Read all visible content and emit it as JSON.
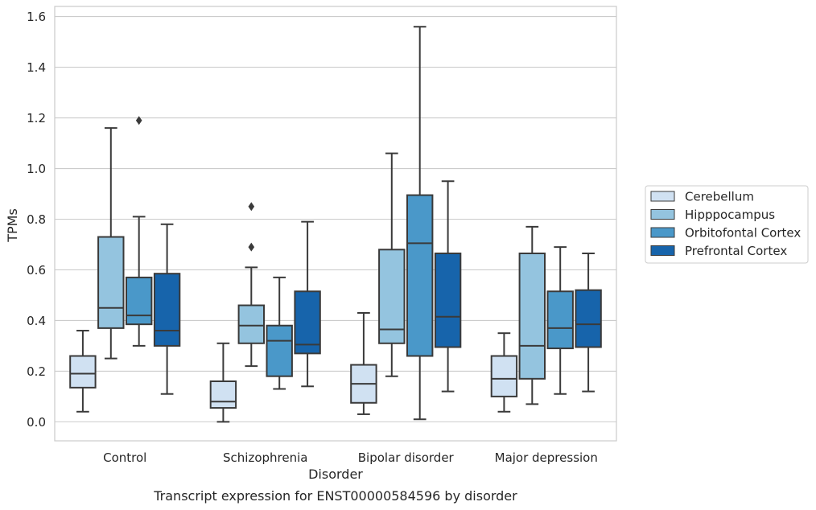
{
  "chart_data": {
    "type": "box",
    "caption": "Transcript expression for ENST00000584596 by disorder",
    "xlabel": "Disorder",
    "ylabel": "TPMs",
    "ylim": [
      -0.075,
      1.64
    ],
    "yticks": [
      0.0,
      0.2,
      0.4,
      0.6,
      0.8,
      1.0,
      1.2,
      1.4,
      1.6
    ],
    "ytick_labels": [
      "0.0",
      "0.2",
      "0.4",
      "0.6",
      "0.8",
      "1.0",
      "1.2",
      "1.4",
      "1.6"
    ],
    "grid": "horizontal",
    "legend_position": "right",
    "categories": [
      "Control",
      "Schizophrenia",
      "Bipolar disorder",
      "Major depression"
    ],
    "series": [
      {
        "name": "Cerebellum",
        "color": "#d0e1f2",
        "boxes": [
          {
            "whislo": 0.04,
            "q1": 0.135,
            "med": 0.19,
            "q3": 0.26,
            "whishi": 0.36,
            "fliers": []
          },
          {
            "whislo": 0.0,
            "q1": 0.055,
            "med": 0.08,
            "q3": 0.16,
            "whishi": 0.31,
            "fliers": []
          },
          {
            "whislo": 0.03,
            "q1": 0.075,
            "med": 0.15,
            "q3": 0.225,
            "whishi": 0.43,
            "fliers": []
          },
          {
            "whislo": 0.04,
            "q1": 0.1,
            "med": 0.17,
            "q3": 0.26,
            "whishi": 0.35,
            "fliers": []
          }
        ]
      },
      {
        "name": "Hipppocampus",
        "color": "#94c4df",
        "boxes": [
          {
            "whislo": 0.25,
            "q1": 0.37,
            "med": 0.45,
            "q3": 0.73,
            "whishi": 1.16,
            "fliers": []
          },
          {
            "whislo": 0.22,
            "q1": 0.31,
            "med": 0.38,
            "q3": 0.46,
            "whishi": 0.61,
            "fliers": [
              0.69,
              0.85
            ]
          },
          {
            "whislo": 0.18,
            "q1": 0.31,
            "med": 0.365,
            "q3": 0.68,
            "whishi": 1.06,
            "fliers": []
          },
          {
            "whislo": 0.07,
            "q1": 0.17,
            "med": 0.3,
            "q3": 0.665,
            "whishi": 0.77,
            "fliers": []
          }
        ]
      },
      {
        "name": "Orbitofontal Cortex",
        "color": "#4a98c9",
        "boxes": [
          {
            "whislo": 0.3,
            "q1": 0.385,
            "med": 0.42,
            "q3": 0.57,
            "whishi": 0.81,
            "fliers": [
              1.19
            ]
          },
          {
            "whislo": 0.13,
            "q1": 0.18,
            "med": 0.32,
            "q3": 0.38,
            "whishi": 0.57,
            "fliers": []
          },
          {
            "whislo": 0.01,
            "q1": 0.26,
            "med": 0.705,
            "q3": 0.895,
            "whishi": 1.56,
            "fliers": []
          },
          {
            "whislo": 0.11,
            "q1": 0.29,
            "med": 0.37,
            "q3": 0.515,
            "whishi": 0.69,
            "fliers": []
          }
        ]
      },
      {
        "name": "Prefrontal Cortex",
        "color": "#1764ab",
        "boxes": [
          {
            "whislo": 0.11,
            "q1": 0.3,
            "med": 0.36,
            "q3": 0.585,
            "whishi": 0.78,
            "fliers": []
          },
          {
            "whislo": 0.14,
            "q1": 0.27,
            "med": 0.305,
            "q3": 0.515,
            "whishi": 0.79,
            "fliers": []
          },
          {
            "whislo": 0.12,
            "q1": 0.295,
            "med": 0.415,
            "q3": 0.665,
            "whishi": 0.95,
            "fliers": []
          },
          {
            "whislo": 0.12,
            "q1": 0.295,
            "med": 0.385,
            "q3": 0.52,
            "whishi": 0.665,
            "fliers": []
          }
        ]
      }
    ]
  }
}
